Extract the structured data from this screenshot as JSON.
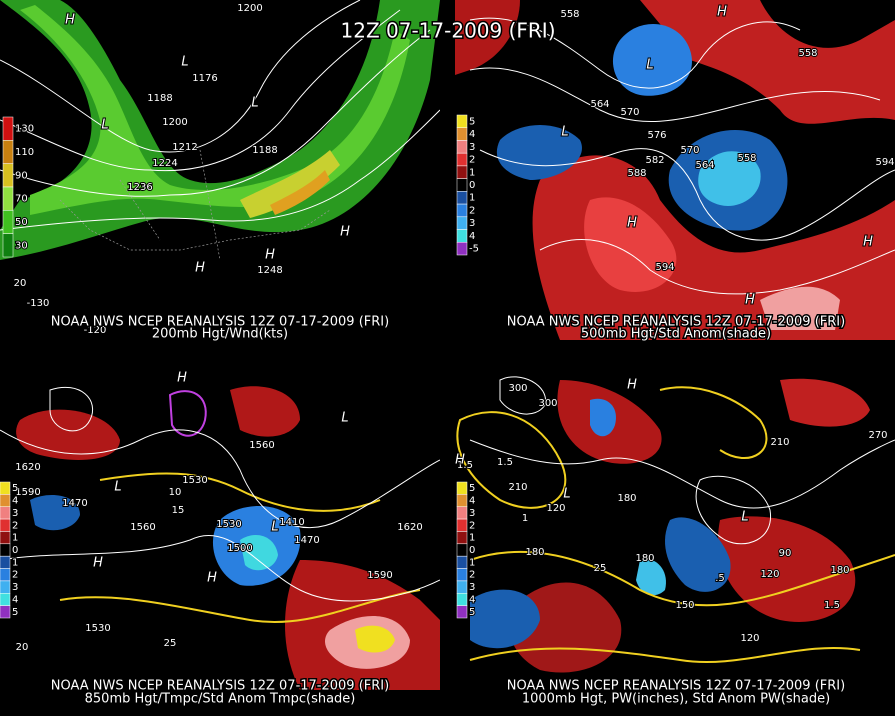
{
  "header": {
    "title": "12Z 07-17-2009 (FRI)"
  },
  "panels": [
    {
      "caption": [
        "NOAA NWS NCEP REANALYSIS 12Z 07-17-2009 (FRI)",
        "200mb Hgt/Wnd(kts)"
      ],
      "colorbar": [
        "130",
        "110",
        "90",
        "70",
        "50",
        "30"
      ],
      "colorbar_colors": [
        "#d01010",
        "#c88010",
        "#d8c020",
        "#90e040",
        "#40c020",
        "#108010"
      ],
      "labels": [
        "1200",
        "1176",
        "1188",
        "1200",
        "1212",
        "1224",
        "1236",
        "1188",
        "1248",
        "20",
        "-130",
        "-120",
        "H",
        "L",
        "L",
        "L",
        "H",
        "H",
        "H"
      ]
    },
    {
      "caption": [
        "NOAA NWS NCEP REANALYSIS 12Z 07-17-2009 (FRI)",
        "500mb Hgt/Std Anom(shade)"
      ],
      "colorbar": [
        "5",
        "4",
        "3",
        "2",
        "1",
        "0",
        "1",
        "2",
        "3",
        "4",
        "-5"
      ],
      "colorbar_colors": [
        "#f0e020",
        "#e09030",
        "#f08080",
        "#e03030",
        "#901010",
        "#000000",
        "#1a4fa0",
        "#2a80e0",
        "#40b0f0",
        "#40e0e0",
        "#9030c0"
      ],
      "labels": [
        "558",
        "564",
        "570",
        "576",
        "582",
        "588",
        "570",
        "564",
        "558",
        "594",
        "594",
        "558",
        "H",
        "L",
        "L",
        "H",
        "H",
        "H"
      ]
    },
    {
      "caption": [
        "NOAA NWS NCEP REANALYSIS 12Z 07-17-2009 (FRI)",
        "850mb Hgt/Tmpc/Std Anom Tmpc(shade)"
      ],
      "colorbar": [
        "5",
        "4",
        "3",
        "2",
        "1",
        "0",
        "1",
        "2",
        "3",
        "4",
        "5"
      ],
      "colorbar_colors": [
        "#f0e020",
        "#e09030",
        "#f08080",
        "#e03030",
        "#901010",
        "#000000",
        "#1a4fa0",
        "#2a80e0",
        "#40b0f0",
        "#40e0e0",
        "#9030c0"
      ],
      "labels": [
        "1620",
        "1590",
        "1470",
        "1560",
        "1530",
        "1500",
        "1530",
        "1560",
        "1470",
        "1410",
        "1620",
        "1590",
        "1530",
        "20",
        "10",
        "15",
        "25",
        "H",
        "L",
        "H",
        "H",
        "L",
        "L"
      ]
    },
    {
      "caption": [
        "NOAA NWS NCEP REANALYSIS 12Z 07-17-2009 (FRI)",
        "1000mb Hgt, PW(inches), Std Anom PW(shade)"
      ],
      "colorbar": [
        "5",
        "4",
        "3",
        "2",
        "1",
        "0",
        "1",
        "2",
        "3",
        "4",
        "5"
      ],
      "colorbar_colors": [
        "#f0e020",
        "#e09030",
        "#f08080",
        "#e03030",
        "#901010",
        "#000000",
        "#1a4fa0",
        "#2a80e0",
        "#40b0f0",
        "#40e0e0",
        "#9030c0"
      ],
      "labels": [
        "300",
        "300",
        "210",
        "120",
        "180",
        "180",
        "180",
        "150",
        "120",
        "90",
        "120",
        "180",
        "210",
        "270",
        "1.5",
        "1.5",
        "1",
        ".5",
        "25",
        "1.5",
        "H",
        "H",
        "L",
        "L"
      ]
    }
  ]
}
